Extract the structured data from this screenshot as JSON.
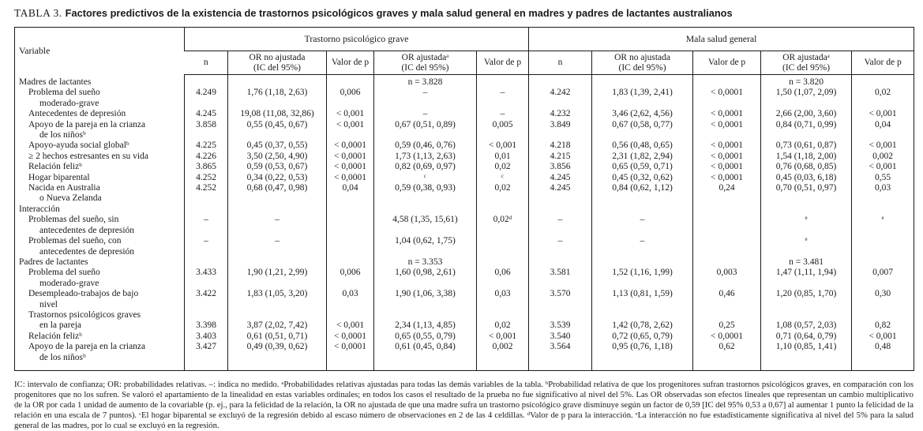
{
  "title": {
    "label": "TABLA 3.",
    "text": "Factores predictivos de la existencia de trastornos psicológicos graves y mala salud general en madres y padres de lactantes australianos"
  },
  "table": {
    "variable_header": "Variable",
    "group1": "Trastorno psicológico grave",
    "group2": "Mala salud general",
    "subheaders": [
      "n",
      "OR no ajustada\n(IC del 95%)",
      "Valor de p",
      "OR ajustadaᵃ\n(IC del 95%)",
      "Valor de p",
      "n",
      "OR no ajustada\n(IC del 95%)",
      "Valor de p",
      "OR ajustadaᵃ\n(IC del 95%)",
      "Valor de p"
    ],
    "rows": [
      {
        "label": "Madres de lactantes",
        "indent": 0,
        "cells": [
          "",
          "",
          "",
          "n = 3.828",
          "",
          "",
          "",
          "",
          "n = 3.820",
          ""
        ]
      },
      {
        "label": "Problema del sueño",
        "indent": 1,
        "cells": [
          "4.249",
          "1,76 (1,18, 2,63)",
          "0,006",
          "–",
          "–",
          "4.242",
          "1,83 (1,39, 2,41)",
          "< 0,0001",
          "1,50 (1,07, 2,09)",
          "0,02"
        ]
      },
      {
        "label": "moderado-grave",
        "indent": 2,
        "cells": [
          "",
          "",
          "",
          "",
          "",
          "",
          "",
          "",
          "",
          ""
        ]
      },
      {
        "label": "Antecedentes de depresión",
        "indent": 1,
        "cells": [
          "4.245",
          "19,08 (11,08, 32,86)",
          "< 0,001",
          "–",
          "–",
          "4.232",
          "3,46 (2,62, 4,56)",
          "< 0,0001",
          "2,66 (2,00, 3,60)",
          "< 0,001"
        ]
      },
      {
        "label": "Apoyo de la pareja en la crianza",
        "indent": 1,
        "cells": [
          "3.858",
          "0,55 (0,45, 0,67)",
          "< 0,001",
          "0,67 (0,51, 0,89)",
          "0,005",
          "3.849",
          "0,67 (0,58, 0,77)",
          "< 0,0001",
          "0,84 (0,71, 0,99)",
          "0,04"
        ]
      },
      {
        "label": "de los niñosᵇ",
        "indent": 2,
        "cells": [
          "",
          "",
          "",
          "",
          "",
          "",
          "",
          "",
          "",
          ""
        ]
      },
      {
        "label": "Apoyo-ayuda social globalᵇ",
        "indent": 1,
        "cells": [
          "4.225",
          "0,45 (0,37, 0,55)",
          "< 0,0001",
          "0,59 (0,46, 0,76)",
          "< 0,001",
          "4.218",
          "0,56 (0,48, 0,65)",
          "< 0,0001",
          "0,73 (0,61, 0,87)",
          "< 0,001"
        ]
      },
      {
        "label": "≥ 2 hechos estresantes en su vida",
        "indent": 1,
        "cells": [
          "4.226",
          "3,50 (2,50, 4,90)",
          "< 0,0001",
          "1,73 (1,13, 2,63)",
          "0,01",
          "4.215",
          "2,31 (1,82, 2,94)",
          "< 0,0001",
          "1,54 (1,18, 2,00)",
          "0,002"
        ]
      },
      {
        "label": "Relación felizᵇ",
        "indent": 1,
        "cells": [
          "3.865",
          "0,59 (0,53, 0,67)",
          "< 0,0001",
          "0,82 (0,69, 0,97)",
          "0,02",
          "3.856",
          "0,65 (0,59, 0,71)",
          "< 0,0001",
          "0,76 (0,68, 0,85)",
          "< 0,001"
        ]
      },
      {
        "label": "Hogar biparental",
        "indent": 1,
        "cells": [
          "4.252",
          "0,34 (0,22, 0,53)",
          "< 0,0001",
          "ᶜ",
          "ᶜ",
          "4.245",
          "0,45 (0,32, 0,62)",
          "< 0,0001",
          "0,45 (0,03, 6,18)",
          "0,55"
        ]
      },
      {
        "label": "Nacida en Australia",
        "indent": 1,
        "cells": [
          "4.252",
          "0,68 (0,47, 0,98)",
          "0,04",
          "0,59 (0,38, 0,93)",
          "0,02",
          "4.245",
          "0,84 (0,62, 1,12)",
          "0,24",
          "0,70 (0,51, 0,97)",
          "0,03"
        ]
      },
      {
        "label": "o Nueva Zelanda",
        "indent": 2,
        "cells": [
          "",
          "",
          "",
          "",
          "",
          "",
          "",
          "",
          "",
          ""
        ]
      },
      {
        "label": "Interacción",
        "indent": 0,
        "cells": [
          "",
          "",
          "",
          "",
          "",
          "",
          "",
          "",
          "",
          ""
        ]
      },
      {
        "label": "Problemas del sueño, sin",
        "indent": 1,
        "cells": [
          "–",
          "–",
          "",
          "4,58 (1,35, 15,61)",
          "0,02ᵈ",
          "–",
          "–",
          "",
          "ᵉ",
          "ᵉ"
        ]
      },
      {
        "label": "antecedentes de depresión",
        "indent": 2,
        "cells": [
          "",
          "",
          "",
          "",
          "",
          "",
          "",
          "",
          "",
          ""
        ]
      },
      {
        "label": "Problemas del sueño, con",
        "indent": 1,
        "cells": [
          "–",
          "–",
          "",
          "1,04 (0,62, 1,75)",
          "",
          "–",
          "–",
          "",
          "ᵉ",
          ""
        ]
      },
      {
        "label": "antecedentes de depresión",
        "indent": 2,
        "cells": [
          "",
          "",
          "",
          "",
          "",
          "",
          "",
          "",
          "",
          ""
        ]
      },
      {
        "label": "Padres de lactantes",
        "indent": 0,
        "cells": [
          "",
          "",
          "",
          "n = 3.353",
          "",
          "",
          "",
          "",
          "n = 3.481",
          ""
        ]
      },
      {
        "label": "Problema del sueño",
        "indent": 1,
        "cells": [
          "3.433",
          "1,90 (1,21, 2,99)",
          "0,006",
          "1,60 (0,98, 2,61)",
          "0,06",
          "3.581",
          "1,52 (1,16, 1,99)",
          "0,003",
          "1,47 (1,11, 1,94)",
          "0,007"
        ]
      },
      {
        "label": "moderado-grave",
        "indent": 2,
        "cells": [
          "",
          "",
          "",
          "",
          "",
          "",
          "",
          "",
          "",
          ""
        ]
      },
      {
        "label": "Desempleado-trabajos de bajo",
        "indent": 1,
        "cells": [
          "3.422",
          "1,83 (1,05, 3,20)",
          "0,03",
          "1,90 (1,06, 3,38)",
          "0,03",
          "3.570",
          "1,13 (0,81, 1,59)",
          "0,46",
          "1,20 (0,85, 1,70)",
          "0,30"
        ]
      },
      {
        "label": "nivel",
        "indent": 2,
        "cells": [
          "",
          "",
          "",
          "",
          "",
          "",
          "",
          "",
          "",
          ""
        ]
      },
      {
        "label": "Trastornos psicológicos graves",
        "indent": 1,
        "cells": [
          "",
          "",
          "",
          "",
          "",
          "",
          "",
          "",
          "",
          ""
        ]
      },
      {
        "label": "en la pareja",
        "indent": 2,
        "cells": [
          "3.398",
          "3,87 (2,02, 7,42)",
          "< 0,001",
          "2,34 (1,13, 4,85)",
          "0,02",
          "3.539",
          "1,42 (0,78, 2,62)",
          "0,25",
          "1,08 (0,57, 2,03)",
          "0,82"
        ]
      },
      {
        "label": "Relación felizᵇ",
        "indent": 1,
        "cells": [
          "3.403",
          "0,61 (0,51, 0,71)",
          "< 0,0001",
          "0,65 (0,55, 0,79)",
          "< 0,001",
          "3.540",
          "0,72 (0,65, 0,79)",
          "< 0,0001",
          "0,71 (0,64, 0,79)",
          "< 0,001"
        ]
      },
      {
        "label": "Apoyo de la pareja en la crianza",
        "indent": 1,
        "cells": [
          "3.427",
          "0,49 (0,39, 0,62)",
          "< 0,0001",
          "0,61 (0,45, 0,84)",
          "0,002",
          "3.564",
          "0,95 (0,76, 1,18)",
          "0,62",
          "1,10 (0,85, 1,41)",
          "0,48"
        ]
      },
      {
        "label": "de los niñosᵇ",
        "indent": 2,
        "cells": [
          "",
          "",
          "",
          "",
          "",
          "",
          "",
          "",
          "",
          ""
        ]
      }
    ]
  },
  "footnote": "IC: intervalo de confianza; OR: probabilidades relativas. –: indica no medido. ᵃProbabilidades relativas ajustadas para todas las demás variables de la tabla. ᵇProbabilidad relativa de que los progenitores sufran trastornos psicológicos graves, en comparación con los progenitores que no los sufren. Se valoró el apartamiento de la linealidad en estas variables ordinales; en todos los casos el resultado de la prueba no fue significativo al nivel del 5%. Las OR observadas son efectos lineales que representan un cambio multiplicativo de la OR por cada 1 unidad de aumento de la covariable (p. ej., para la felicidad de la relación, la OR no ajustada de que una madre sufra un trastorno psicológico grave disminuye según un factor de 0,59 [IC del 95% 0,53 a 0,67] al aumentar 1 punto la felicidad de la relación en una escala de 7 puntos). ᶜEl hogar biparental se excluyó de la regresión debido al escaso número de observaciones en 2 de las 4 celdillas. ᵈValor de p para la interacción. ᵉLa interacción no fue estadísticamente significativa al nivel del 5% para la salud general de las madres, por lo cual se excluyó en la regresión."
}
